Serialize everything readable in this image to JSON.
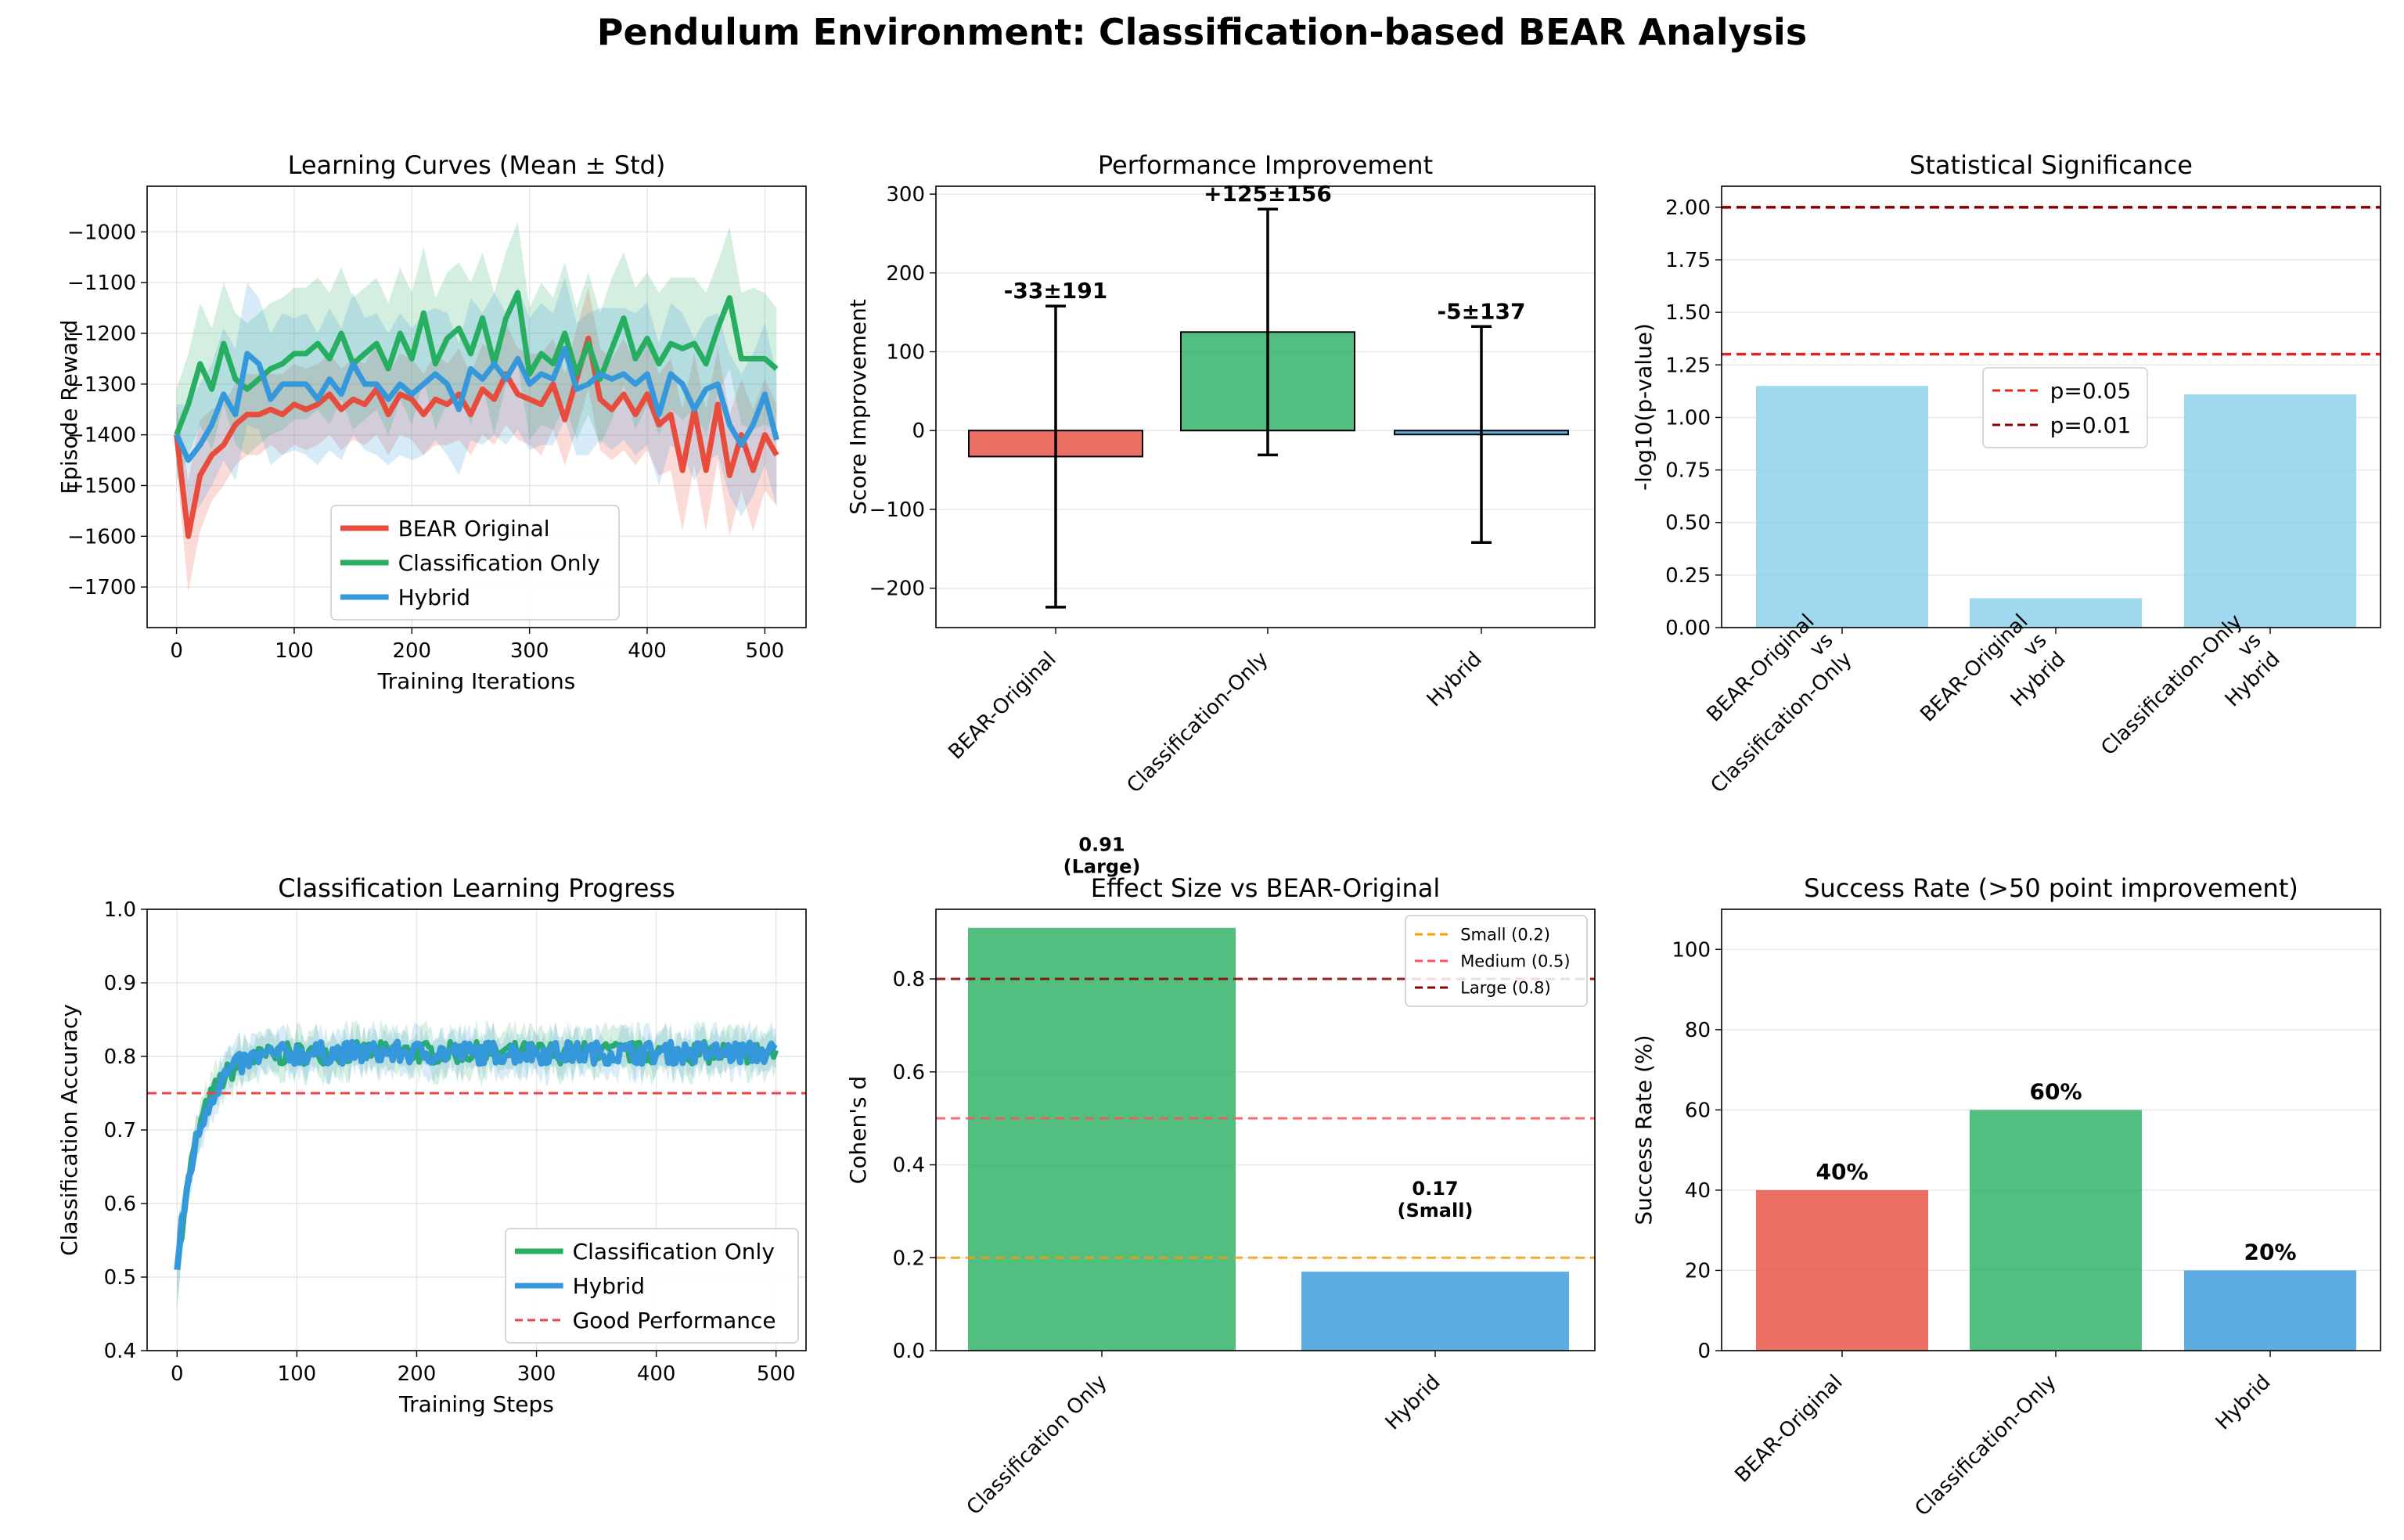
{
  "figure": {
    "title": "Pendulum Environment: Classification-based BEAR Analysis"
  },
  "colors": {
    "red": "#e74c3c",
    "green": "#27ae60",
    "blue": "#3498db",
    "sky": "#87ceeb",
    "orange": "#f39c12",
    "lightred": "#ff5555",
    "darkred": "#8b0000",
    "grid": "#e6e6e6"
  },
  "chart_data": [
    {
      "id": "learning_curves",
      "type": "line",
      "title": "Learning Curves (Mean ± Std)",
      "xlabel": "Training Iterations",
      "ylabel": "Episode Reward",
      "xlim": [
        -25,
        535
      ],
      "ylim": [
        -1780,
        -910
      ],
      "xticks": [
        0,
        100,
        200,
        300,
        400,
        500
      ],
      "xtick_labels": [
        "0",
        "100",
        "200",
        "300",
        "400",
        "500"
      ],
      "yticks": [
        -1700,
        -1600,
        -1500,
        -1400,
        -1300,
        -1200,
        -1100,
        -1000
      ],
      "ytick_labels": [
        "−1700",
        "−1600",
        "−1500",
        "−1400",
        "−1300",
        "−1200",
        "−1100",
        "−1000"
      ],
      "grid": true,
      "legend": "lower-center",
      "x": [
        0,
        10,
        20,
        30,
        40,
        50,
        60,
        70,
        80,
        90,
        100,
        110,
        120,
        130,
        140,
        150,
        160,
        170,
        180,
        190,
        200,
        210,
        220,
        230,
        240,
        250,
        260,
        270,
        280,
        290,
        300,
        310,
        320,
        330,
        340,
        350,
        360,
        370,
        380,
        390,
        400,
        410,
        420,
        430,
        440,
        450,
        460,
        470,
        480,
        490,
        500,
        510
      ],
      "series": [
        {
          "name": "BEAR Original",
          "color": "#e74c3c",
          "mean": [
            -1400,
            -1600,
            -1480,
            -1440,
            -1420,
            -1380,
            -1360,
            -1360,
            -1350,
            -1360,
            -1340,
            -1350,
            -1340,
            -1320,
            -1350,
            -1330,
            -1340,
            -1310,
            -1360,
            -1320,
            -1330,
            -1360,
            -1330,
            -1340,
            -1320,
            -1360,
            -1310,
            -1330,
            -1280,
            -1320,
            -1330,
            -1340,
            -1300,
            -1370,
            -1290,
            -1210,
            -1330,
            -1350,
            -1320,
            -1360,
            -1320,
            -1380,
            -1360,
            -1470,
            -1350,
            -1470,
            -1340,
            -1480,
            -1400,
            -1470,
            -1400,
            -1440
          ],
          "std": [
            60,
            110,
            110,
            90,
            80,
            80,
            80,
            80,
            70,
            80,
            80,
            80,
            80,
            80,
            80,
            80,
            80,
            90,
            80,
            80,
            80,
            80,
            90,
            80,
            90,
            80,
            90,
            90,
            100,
            90,
            90,
            100,
            90,
            90,
            100,
            100,
            100,
            100,
            110,
            100,
            110,
            100,
            110,
            120,
            110,
            120,
            110,
            120,
            110,
            120,
            110,
            100
          ]
        },
        {
          "name": "Classification Only",
          "color": "#27ae60",
          "mean": [
            -1400,
            -1340,
            -1260,
            -1310,
            -1220,
            -1290,
            -1310,
            -1290,
            -1270,
            -1260,
            -1240,
            -1240,
            -1220,
            -1250,
            -1200,
            -1260,
            -1240,
            -1220,
            -1270,
            -1200,
            -1250,
            -1160,
            -1260,
            -1210,
            -1190,
            -1240,
            -1170,
            -1260,
            -1170,
            -1120,
            -1280,
            -1240,
            -1260,
            -1200,
            -1280,
            -1220,
            -1290,
            -1230,
            -1170,
            -1250,
            -1210,
            -1260,
            -1220,
            -1230,
            -1220,
            -1260,
            -1190,
            -1130,
            -1250,
            -1250,
            -1250,
            -1270
          ],
          "std": [
            90,
            100,
            120,
            120,
            120,
            130,
            130,
            130,
            130,
            130,
            130,
            130,
            130,
            130,
            130,
            130,
            130,
            130,
            130,
            130,
            130,
            130,
            130,
            130,
            130,
            140,
            130,
            140,
            130,
            140,
            130,
            140,
            130,
            140,
            130,
            140,
            130,
            140,
            130,
            140,
            130,
            140,
            130,
            140,
            130,
            140,
            130,
            140,
            130,
            140,
            130,
            120
          ]
        },
        {
          "name": "Hybrid",
          "color": "#3498db",
          "mean": [
            -1400,
            -1450,
            -1420,
            -1380,
            -1320,
            -1360,
            -1240,
            -1260,
            -1330,
            -1300,
            -1300,
            -1300,
            -1330,
            -1290,
            -1320,
            -1260,
            -1300,
            -1300,
            -1330,
            -1300,
            -1320,
            -1300,
            -1280,
            -1300,
            -1350,
            -1270,
            -1290,
            -1260,
            -1290,
            -1250,
            -1300,
            -1280,
            -1290,
            -1230,
            -1310,
            -1300,
            -1280,
            -1290,
            -1280,
            -1300,
            -1280,
            -1360,
            -1280,
            -1300,
            -1350,
            -1310,
            -1300,
            -1380,
            -1420,
            -1380,
            -1320,
            -1410
          ],
          "std": [
            60,
            110,
            120,
            120,
            130,
            130,
            140,
            130,
            130,
            140,
            130,
            140,
            130,
            140,
            130,
            140,
            130,
            140,
            130,
            140,
            130,
            140,
            130,
            140,
            130,
            140,
            130,
            140,
            130,
            140,
            130,
            140,
            130,
            140,
            130,
            140,
            130,
            140,
            130,
            140,
            140,
            140,
            140,
            140,
            140,
            140,
            140,
            140,
            140,
            140,
            140,
            130
          ]
        }
      ]
    },
    {
      "id": "performance_improvement",
      "type": "bar",
      "title": "Performance Improvement",
      "ylabel": "Score Improvement",
      "ylim": [
        -250,
        310
      ],
      "yticks": [
        -200,
        -100,
        0,
        100,
        200,
        300
      ],
      "ytick_labels": [
        "−200",
        "−100",
        "0",
        "100",
        "200",
        "300"
      ],
      "categories": [
        "BEAR-Original",
        "Classification-Only",
        "Hybrid"
      ],
      "values": [
        -33,
        125,
        -5
      ],
      "errors": [
        191,
        156,
        137
      ],
      "labels": [
        "-33±191",
        "+125±156",
        "-5±137"
      ],
      "colors": [
        "#e74c3c",
        "#27ae60",
        "#3498db"
      ],
      "grid": true
    },
    {
      "id": "statistical_significance",
      "type": "bar",
      "title": "Statistical Significance",
      "ylabel": "-log10(p-value)",
      "ylim": [
        0,
        2.1
      ],
      "yticks": [
        0,
        0.25,
        0.5,
        0.75,
        1.0,
        1.25,
        1.5,
        1.75,
        2.0
      ],
      "ytick_labels": [
        "0.00",
        "0.25",
        "0.50",
        "0.75",
        "1.00",
        "1.25",
        "1.50",
        "1.75",
        "2.00"
      ],
      "categories": [
        [
          "BEAR-Original",
          "vs",
          "Classification-Only"
        ],
        [
          "BEAR-Original",
          "vs",
          "Hybrid"
        ],
        [
          "Classification-Only",
          "vs",
          "Hybrid"
        ]
      ],
      "values": [
        1.15,
        0.14,
        1.11
      ],
      "thresholds": [
        {
          "label": "p=0.05",
          "value": 1.301,
          "color": "#dd2222"
        },
        {
          "label": "p=0.01",
          "value": 2.0,
          "color": "#8b0000"
        }
      ],
      "bar_color": "#87ceeb",
      "grid": true,
      "legend": "center"
    },
    {
      "id": "classification_progress",
      "type": "line",
      "title": "Classification Learning Progress",
      "xlabel": "Training Steps",
      "ylabel": "Classification Accuracy",
      "xlim": [
        -25,
        525
      ],
      "ylim": [
        0.4,
        1.0
      ],
      "xticks": [
        0,
        100,
        200,
        300,
        400,
        500
      ],
      "xtick_labels": [
        "0",
        "100",
        "200",
        "300",
        "400",
        "500"
      ],
      "yticks": [
        0.4,
        0.5,
        0.6,
        0.7,
        0.8,
        0.9,
        1.0
      ],
      "ytick_labels": [
        "0.4",
        "0.5",
        "0.6",
        "0.7",
        "0.8",
        "0.9",
        "1.0"
      ],
      "reference": {
        "label": "Good Performance",
        "value": 0.75,
        "color": "#ee4444"
      },
      "series": [
        {
          "name": "Classification Only",
          "color": "#27ae60"
        },
        {
          "name": "Hybrid",
          "color": "#3498db"
        }
      ],
      "model": {
        "start": 0.51,
        "plateau": 0.805,
        "tau": 18,
        "std": 0.022
      },
      "grid": true,
      "legend": "lower-right"
    },
    {
      "id": "effect_size",
      "type": "bar",
      "title": "Effect Size vs BEAR-Original",
      "ylabel": "Cohen's d",
      "ylim": [
        0,
        0.95
      ],
      "yticks": [
        0,
        0.2,
        0.4,
        0.6,
        0.8
      ],
      "ytick_labels": [
        "0.0",
        "0.2",
        "0.4",
        "0.6",
        "0.8"
      ],
      "categories": [
        "Classification Only",
        "Hybrid"
      ],
      "values": [
        0.91,
        0.17
      ],
      "labels": [
        [
          "0.91",
          "(Large)"
        ],
        [
          "0.17",
          "(Small)"
        ]
      ],
      "colors": [
        "#27ae60",
        "#3498db"
      ],
      "thresholds": [
        {
          "label": "Small (0.2)",
          "value": 0.2,
          "color": "#f39c12"
        },
        {
          "label": "Medium (0.5)",
          "value": 0.5,
          "color": "#ff5555"
        },
        {
          "label": "Large (0.8)",
          "value": 0.8,
          "color": "#8b0000"
        }
      ],
      "grid": true,
      "legend": "top-right"
    },
    {
      "id": "success_rate",
      "type": "bar",
      "title": "Success Rate (>50 point improvement)",
      "ylabel": "Success Rate (%)",
      "ylim": [
        0,
        110
      ],
      "yticks": [
        0,
        20,
        40,
        60,
        80,
        100
      ],
      "ytick_labels": [
        "0",
        "20",
        "40",
        "60",
        "80",
        "100"
      ],
      "categories": [
        "BEAR-Original",
        "Classification-Only",
        "Hybrid"
      ],
      "values": [
        40,
        60,
        20
      ],
      "labels": [
        "40%",
        "60%",
        "20%"
      ],
      "colors": [
        "#e74c3c",
        "#27ae60",
        "#3498db"
      ],
      "grid": true
    }
  ]
}
